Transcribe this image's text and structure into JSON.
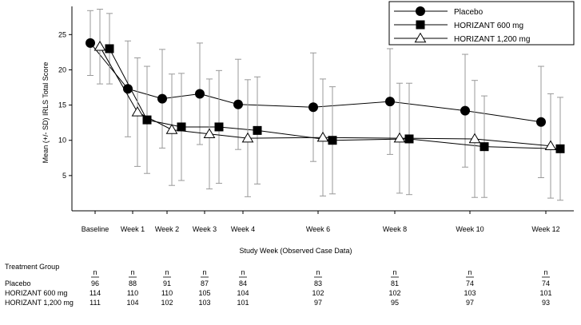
{
  "chart_data": {
    "type": "line",
    "title": "",
    "xlabel": "Study Week (Observed Case Data)",
    "ylabel": "Mean (+/- SD) IRLS Total Score",
    "ylim": [
      0,
      29
    ],
    "yticks": [
      5,
      10,
      15,
      20,
      25
    ],
    "categories": [
      "Baseline",
      "Week 1",
      "Week 2",
      "Week 3",
      "Week 4",
      "Week 6",
      "Week 8",
      "Week 10",
      "Week 12"
    ],
    "legend_position": "top-right",
    "series": [
      {
        "name": "Placebo",
        "marker": "circle",
        "values": [
          23.8,
          17.3,
          15.9,
          16.6,
          15.1,
          14.7,
          15.5,
          14.2,
          12.6
        ],
        "sd": [
          4.6,
          6.8,
          7.0,
          7.2,
          6.4,
          7.7,
          7.5,
          8.0,
          7.9
        ]
      },
      {
        "name": "HORIZANT 600 mg",
        "marker": "square",
        "values": [
          23.0,
          12.9,
          11.9,
          11.9,
          11.4,
          10.0,
          10.2,
          9.1,
          8.8
        ],
        "sd": [
          5.0,
          7.6,
          7.6,
          8.0,
          7.6,
          7.6,
          7.9,
          7.2,
          7.3
        ]
      },
      {
        "name": "HORIZANT 1,200 mg",
        "marker": "triangle",
        "values": [
          23.3,
          14.0,
          11.5,
          10.9,
          10.3,
          10.4,
          10.3,
          10.2,
          9.2
        ],
        "sd": [
          5.3,
          7.7,
          7.9,
          7.8,
          8.3,
          8.3,
          7.8,
          8.3,
          7.4
        ]
      }
    ]
  },
  "table": {
    "header": "Treatment Group",
    "n_label": "n",
    "rows": [
      {
        "label": "Placebo",
        "values": [
          "96",
          "88",
          "91",
          "87",
          "84",
          "83",
          "81",
          "74",
          "74"
        ]
      },
      {
        "label": "HORIZANT 600 mg",
        "values": [
          "114",
          "110",
          "110",
          "105",
          "104",
          "102",
          "102",
          "103",
          "101"
        ]
      },
      {
        "label": "HORIZANT 1,200 mg",
        "values": [
          "111",
          "104",
          "102",
          "103",
          "101",
          "97",
          "95",
          "97",
          "93"
        ]
      }
    ]
  }
}
